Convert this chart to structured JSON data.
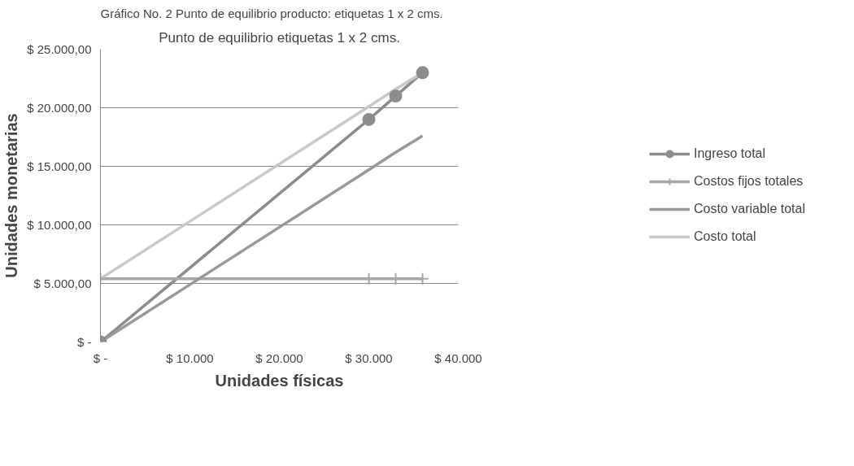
{
  "chart_data": {
    "type": "line",
    "title": "Punto de equilibrio etiquetas 1 x 2 cms.",
    "annotations": [
      "Gráfico No. 2 Punto de equilibrio producto: etiquetas 1 x 2 cms."
    ],
    "xlabel": "Unidades físicas",
    "ylabel": "Unidades monetarias",
    "x": [
      0,
      30000,
      33000,
      36000
    ],
    "series": [
      {
        "name": "Ingreso total",
        "color": "#8c8c8c",
        "marker": "circle",
        "values": [
          0,
          19000,
          21000,
          23000
        ]
      },
      {
        "name": "Costos fijos totales",
        "color": "#a6a6a6",
        "marker": "cross",
        "values": [
          5400,
          5400,
          5400,
          5400
        ]
      },
      {
        "name": "Costo variable total",
        "color": "#999999",
        "marker": "none",
        "values": [
          0,
          14700,
          16200,
          17600
        ]
      },
      {
        "name": "Costo total",
        "color": "#c8c8c8",
        "marker": "none",
        "values": [
          5400,
          20100,
          21600,
          23000
        ]
      }
    ],
    "xlim": [
      0,
      40000
    ],
    "xticks": [
      {
        "value": 0,
        "label": "$ -"
      },
      {
        "value": 10000,
        "label": "$ 10.000"
      },
      {
        "value": 20000,
        "label": "$ 20.000"
      },
      {
        "value": 30000,
        "label": "$ 30.000"
      },
      {
        "value": 40000,
        "label": "$ 40.000"
      }
    ],
    "ylim": [
      0,
      25000
    ],
    "yticks": [
      {
        "value": 0,
        "label": "$ -"
      },
      {
        "value": 5000,
        "label": "$ 5.000,00"
      },
      {
        "value": 10000,
        "label": "$ 10.000,00"
      },
      {
        "value": 15000,
        "label": "$ 15.000,00"
      },
      {
        "value": 20000,
        "label": "$ 20.000,00"
      },
      {
        "value": 25000,
        "label": "$ 25.000,00"
      }
    ],
    "grid": "y",
    "legend": "right"
  }
}
